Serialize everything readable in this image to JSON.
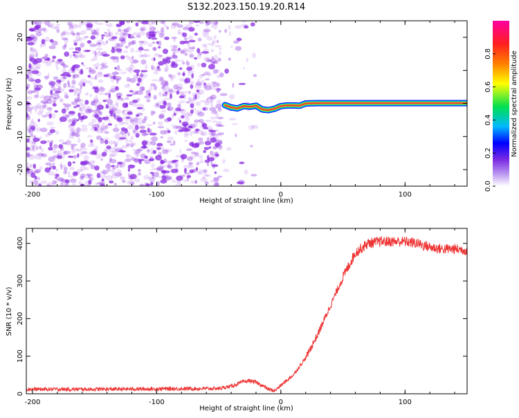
{
  "figure_title": "S132.2023.150.19.20.R14",
  "colors": {
    "snr_line": "#ee3333",
    "signal_core": "#e8403a",
    "noise": "#8a2be2",
    "colormap": [
      "#ffffff",
      "#7b2be2",
      "#0000ff",
      "#00b8ff",
      "#00e050",
      "#ffff00",
      "#ff7f00",
      "#ff2020",
      "#ff00a0"
    ]
  },
  "chart_data": [
    {
      "type": "heatmap",
      "xlabel": "Height of straight line (km)",
      "ylabel": "Frequency (Hz)",
      "xlim": [
        -205,
        150
      ],
      "ylim": [
        -25,
        25
      ],
      "x_ticks": [
        -200,
        -100,
        0,
        100
      ],
      "y_ticks": [
        -20,
        -10,
        0,
        10,
        20
      ],
      "colorbar": {
        "label": "Normalized spectral amplitude",
        "range": [
          0,
          1
        ],
        "ticks": [
          0.0,
          0.2,
          0.4,
          0.6,
          0.8
        ]
      },
      "signal_track": {
        "x": [
          -45,
          -40,
          -35,
          -30,
          -25,
          -20,
          -15,
          -10,
          -5,
          0,
          5,
          10,
          15,
          20,
          30,
          50,
          100,
          150
        ],
        "frequency": [
          -0.5,
          -1.2,
          -1.5,
          -0.8,
          -1.0,
          -0.7,
          -1.8,
          -2.0,
          -1.6,
          -0.8,
          -0.6,
          -0.6,
          -0.7,
          0.0,
          0.1,
          0.1,
          0.1,
          0.1
        ]
      }
    },
    {
      "type": "line",
      "xlabel": "Height of straight line (km)",
      "ylabel": "SNR (10 * v/v)",
      "xlim": [
        -205,
        150
      ],
      "ylim": [
        0,
        440
      ],
      "x_ticks": [
        -200,
        -100,
        0,
        100
      ],
      "y_ticks": [
        0,
        100,
        200,
        300,
        400
      ],
      "series": [
        {
          "x": [
            -205,
            -150,
            -100,
            -50,
            -40,
            -30,
            -25,
            -20,
            -15,
            -10,
            -5,
            0,
            10,
            20,
            30,
            40,
            50,
            60,
            70,
            80,
            90,
            100,
            110,
            120,
            130,
            140,
            150
          ],
          "y": [
            12,
            12,
            13,
            14,
            20,
            32,
            35,
            30,
            22,
            12,
            8,
            22,
            50,
            95,
            160,
            235,
            310,
            375,
            400,
            405,
            405,
            405,
            400,
            390,
            385,
            385,
            382
          ]
        }
      ]
    }
  ]
}
